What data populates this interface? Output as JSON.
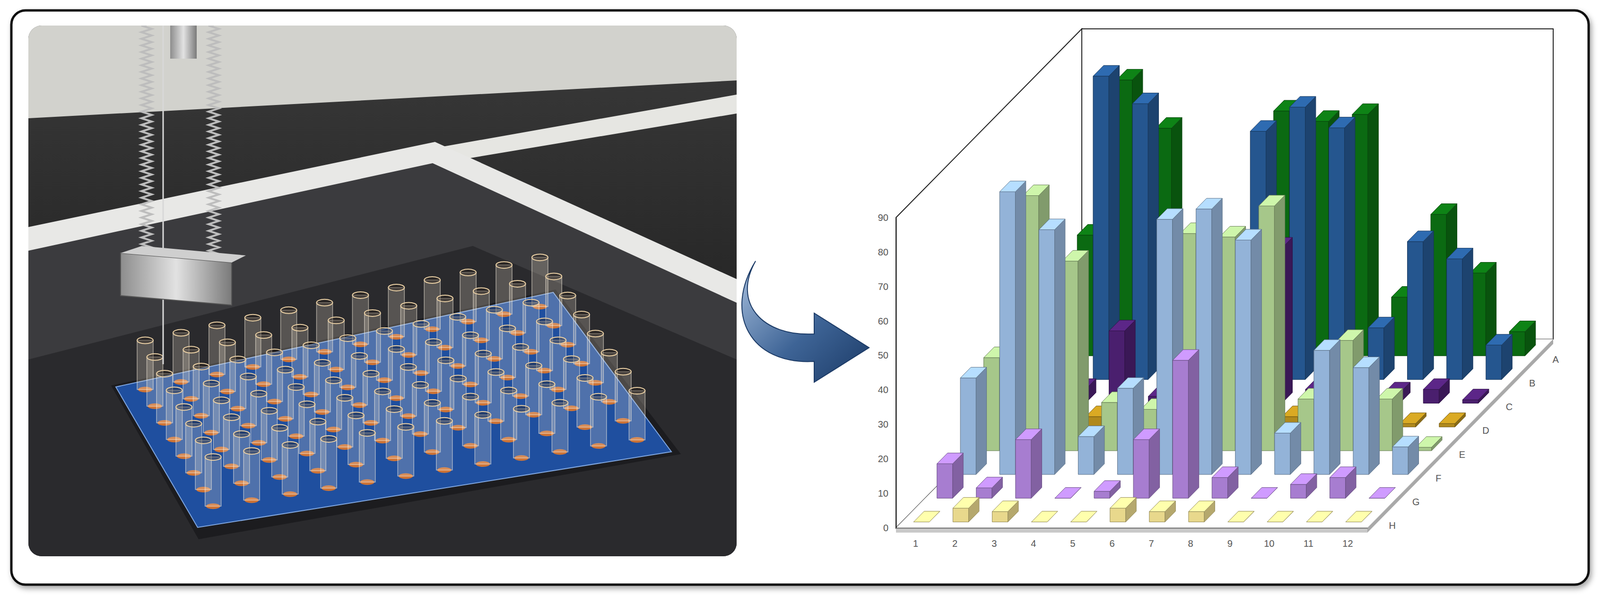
{
  "chart_data": {
    "type": "bar",
    "categories": [
      "1",
      "2",
      "3",
      "4",
      "5",
      "6",
      "7",
      "8",
      "9",
      "10",
      "11",
      "12"
    ],
    "series": [
      {
        "name": "A",
        "color": "#0b6a12",
        "values": [
          35,
          80,
          66,
          5,
          6,
          71,
          68,
          70,
          17,
          41,
          24,
          7
        ]
      },
      {
        "name": "B",
        "color": "#25568f",
        "values": [
          12,
          88,
          80,
          8,
          10,
          72,
          79,
          73,
          15,
          40,
          35,
          10
        ]
      },
      {
        "name": "C",
        "color": "#4a1f6e",
        "values": [
          1,
          4,
          21,
          2,
          0,
          0,
          45,
          4,
          2,
          3,
          4,
          1
        ]
      },
      {
        "name": "D",
        "color": "#b0891c",
        "values": [
          0,
          0,
          3,
          0,
          0,
          0,
          0,
          3,
          0,
          0,
          1,
          1
        ]
      },
      {
        "name": "E",
        "color": "#a6c78a",
        "values": [
          27,
          74,
          55,
          14,
          12,
          63,
          62,
          71,
          15,
          32,
          15,
          1
        ]
      },
      {
        "name": "F",
        "color": "#93b3d8",
        "values": [
          28,
          82,
          71,
          11,
          25,
          74,
          77,
          68,
          12,
          36,
          31,
          8
        ]
      },
      {
        "name": "G",
        "color": "#a77dd0",
        "values": [
          10,
          3,
          17,
          0,
          2,
          17,
          40,
          6,
          0,
          4,
          6,
          0
        ]
      },
      {
        "name": "H",
        "color": "#e8d88c",
        "values": [
          0,
          4,
          3,
          0,
          0,
          4,
          3,
          3,
          0,
          0,
          0,
          0
        ]
      }
    ],
    "ylim": [
      0,
      90
    ],
    "yticks": [
      0,
      10,
      20,
      30,
      40,
      50,
      60,
      70,
      80,
      90
    ],
    "grid": false
  }
}
